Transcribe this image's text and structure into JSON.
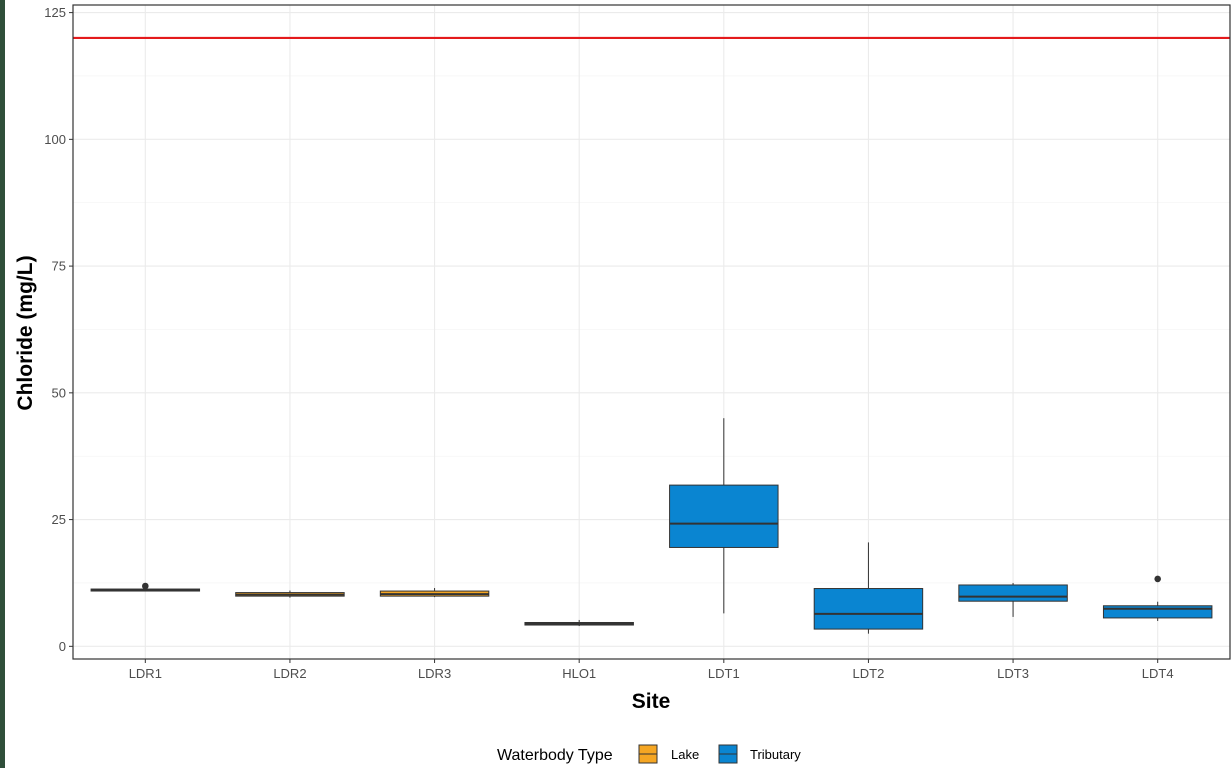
{
  "chart_data": {
    "type": "box",
    "title": "",
    "xlabel": "Site",
    "ylabel": "Chloride (mg/L)",
    "ylim": [
      -2.5,
      126.5
    ],
    "yticks": [
      0,
      25,
      50,
      75,
      100,
      125
    ],
    "grid": true,
    "reference_line": {
      "value": 120,
      "color": "#e41a1c"
    },
    "categories": [
      "LDR1",
      "LDR2",
      "LDR3",
      "HLO1",
      "LDT1",
      "LDT2",
      "LDT3",
      "LDT4"
    ],
    "boxes": [
      {
        "site": "LDR1",
        "type": "Lake",
        "min": 11.0,
        "q1": 11.0,
        "median": 11.1,
        "q3": 11.3,
        "max": 11.4,
        "outliers": [
          11.9
        ]
      },
      {
        "site": "LDR2",
        "type": "Lake",
        "min": 9.6,
        "q1": 9.9,
        "median": 10.2,
        "q3": 10.6,
        "max": 11.0,
        "outliers": []
      },
      {
        "site": "LDR3",
        "type": "Lake",
        "min": 9.7,
        "q1": 9.9,
        "median": 10.3,
        "q3": 10.9,
        "max": 11.5,
        "outliers": []
      },
      {
        "site": "HLO1",
        "type": "Lake",
        "min": 4.0,
        "q1": 4.2,
        "median": 4.4,
        "q3": 4.7,
        "max": 5.2,
        "outliers": []
      },
      {
        "site": "LDT1",
        "type": "Tributary",
        "min": 6.5,
        "q1": 19.5,
        "median": 24.2,
        "q3": 31.8,
        "max": 45.0,
        "outliers": []
      },
      {
        "site": "LDT2",
        "type": "Tributary",
        "min": 2.5,
        "q1": 3.4,
        "median": 6.4,
        "q3": 11.4,
        "max": 20.5,
        "outliers": []
      },
      {
        "site": "LDT3",
        "type": "Tributary",
        "min": 5.8,
        "q1": 8.9,
        "median": 9.8,
        "q3": 12.1,
        "max": 12.5,
        "outliers": []
      },
      {
        "site": "LDT4",
        "type": "Tributary",
        "min": 5.0,
        "q1": 5.6,
        "median": 7.4,
        "q3": 8.0,
        "max": 8.8,
        "outliers": [
          13.3
        ]
      }
    ],
    "legend": {
      "title": "Waterbody Type",
      "position": "bottom",
      "entries": [
        {
          "label": "Lake",
          "color": "#f5a623"
        },
        {
          "label": "Tributary",
          "color": "#0a85d1"
        }
      ]
    }
  }
}
